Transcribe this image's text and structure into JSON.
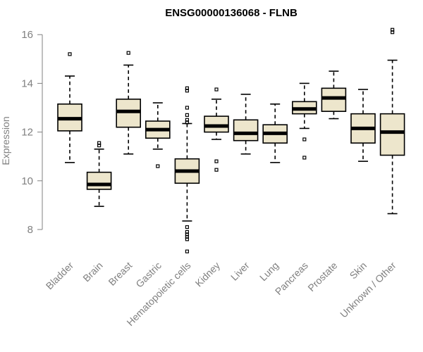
{
  "chart_data": {
    "type": "boxplot",
    "title": "ENSG00000136068 - FLNB",
    "xlabel": "",
    "ylabel": "Expression",
    "ylim": [
      7.0,
      16.3
    ],
    "yticks": [
      8,
      10,
      12,
      14,
      16
    ],
    "box_color": "#ede6cc",
    "categories": [
      "Bladder",
      "Brain",
      "Breast",
      "Gastric",
      "Hematopoietic cells",
      "Kidney",
      "Liver",
      "Lung",
      "Pancreas",
      "Prostate",
      "Skin",
      "Unknown / Other"
    ],
    "boxes": [
      {
        "name": "Bladder",
        "whisker_low": 10.75,
        "q1": 12.05,
        "median": 12.55,
        "q3": 13.15,
        "whisker_high": 14.3,
        "outliers": [
          15.2
        ]
      },
      {
        "name": "Brain",
        "whisker_low": 8.95,
        "q1": 9.65,
        "median": 9.85,
        "q3": 10.35,
        "whisker_high": 11.3,
        "outliers": [
          11.45,
          11.55
        ]
      },
      {
        "name": "Breast",
        "whisker_low": 11.1,
        "q1": 12.2,
        "median": 12.85,
        "q3": 13.35,
        "whisker_high": 14.75,
        "outliers": [
          15.25
        ]
      },
      {
        "name": "Gastric",
        "whisker_low": 11.3,
        "q1": 11.75,
        "median": 12.1,
        "q3": 12.45,
        "whisker_high": 13.2,
        "outliers": [
          10.6
        ]
      },
      {
        "name": "Hematopoietic cells",
        "whisker_low": 8.35,
        "q1": 9.9,
        "median": 10.4,
        "q3": 10.9,
        "whisker_high": 12.35,
        "outliers": [
          13.8,
          13.7,
          13.0,
          12.7,
          12.5,
          12.4,
          8.1,
          7.9,
          7.8,
          7.7,
          7.6,
          7.1
        ]
      },
      {
        "name": "Kidney",
        "whisker_low": 11.7,
        "q1": 12.0,
        "median": 12.25,
        "q3": 12.65,
        "whisker_high": 13.35,
        "outliers": [
          13.75,
          10.8,
          10.45
        ]
      },
      {
        "name": "Liver",
        "whisker_low": 11.1,
        "q1": 11.65,
        "median": 11.95,
        "q3": 12.5,
        "whisker_high": 13.55,
        "outliers": []
      },
      {
        "name": "Lung",
        "whisker_low": 10.75,
        "q1": 11.55,
        "median": 11.95,
        "q3": 12.3,
        "whisker_high": 13.15,
        "outliers": []
      },
      {
        "name": "Pancreas",
        "whisker_low": 12.15,
        "q1": 12.75,
        "median": 12.95,
        "q3": 13.25,
        "whisker_high": 14.0,
        "outliers": [
          11.7,
          10.95
        ]
      },
      {
        "name": "Prostate",
        "whisker_low": 12.55,
        "q1": 12.85,
        "median": 13.4,
        "q3": 13.8,
        "whisker_high": 14.5,
        "outliers": []
      },
      {
        "name": "Skin",
        "whisker_low": 10.8,
        "q1": 11.55,
        "median": 12.15,
        "q3": 12.75,
        "whisker_high": 13.75,
        "outliers": []
      },
      {
        "name": "Unknown / Other",
        "whisker_low": 8.65,
        "q1": 11.05,
        "median": 12.0,
        "q3": 12.75,
        "whisker_high": 14.95,
        "outliers": [
          16.1,
          16.2
        ]
      }
    ]
  }
}
